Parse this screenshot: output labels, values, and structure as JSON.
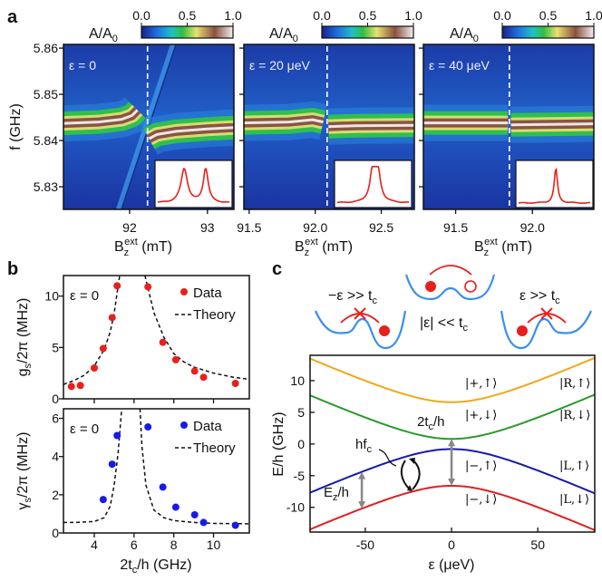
{
  "figure": {
    "panel_labels": [
      "a",
      "b",
      "c"
    ]
  },
  "chart_data": [
    {
      "type": "heatmap",
      "panel": "a",
      "ylabel": "f (GHz)",
      "yticks": [
        "5.86",
        "5.85",
        "5.84",
        "5.83"
      ],
      "ylim": [
        5.8251,
        5.8608
      ],
      "colorbar": {
        "label_main": "A/A",
        "label_sub": "0",
        "ticks": [
          "0.0",
          "0.5",
          "1.0"
        ],
        "range": [
          0,
          1
        ],
        "colors": [
          "#1a1f8c",
          "#1d6fe0",
          "#1fc0c8",
          "#2fbf3f",
          "#e8e070",
          "#8a5040",
          "#f4f0f0"
        ]
      },
      "xlabel": {
        "main": "B",
        "sub": "z",
        "sup": "ext",
        "unit": " (mT)"
      },
      "subplots": [
        {
          "annotation": "ε = 0",
          "xlim": [
            91.15,
            93.34
          ],
          "xticks": [
            {
              "v": 92,
              "l": "92"
            },
            {
              "v": 93,
              "l": "93"
            }
          ],
          "dashed_line_B": 92.23,
          "bands": [
            [
              [
                91.15,
                5.8437
              ],
              [
                91.6,
                5.844
              ],
              [
                91.9,
                5.8446
              ],
              [
                92.03,
                5.8454
              ],
              [
                92.1,
                5.8466
              ]
            ],
            [
              [
                92.25,
                5.8404
              ],
              [
                92.35,
                5.8413
              ],
              [
                92.6,
                5.842
              ],
              [
                93.0,
                5.8425
              ],
              [
                93.34,
                5.8428
              ]
            ]
          ],
          "diagonal": [
            [
              91.86,
              5.8251
            ],
            [
              92.56,
              5.8608
            ]
          ]
        },
        {
          "annotation": "ε = 20 μeV",
          "xlim": [
            91.46,
            92.75
          ],
          "xticks": [
            {
              "v": 91.5,
              "l": "91.5"
            },
            {
              "v": 92.0,
              "l": "92.0"
            },
            {
              "v": 92.5,
              "l": "92.5"
            }
          ],
          "dashed_line_B": 92.09,
          "bands": [
            [
              [
                91.46,
                5.8438
              ],
              [
                91.8,
                5.844
              ],
              [
                91.98,
                5.8445
              ],
              [
                92.06,
                5.844
              ]
            ],
            [
              [
                92.1,
                5.843
              ],
              [
                92.3,
                5.8432
              ],
              [
                92.75,
                5.8433
              ]
            ]
          ]
        },
        {
          "annotation": "ε = 40 μeV",
          "xlim": [
            91.29,
            92.4
          ],
          "xticks": [
            {
              "v": 91.5,
              "l": "91.5"
            },
            {
              "v": 92.0,
              "l": "92.0"
            }
          ],
          "dashed_line_B": 91.85,
          "bands": [
            [
              [
                91.29,
                5.8438
              ],
              [
                91.84,
                5.8438
              ]
            ],
            [
              [
                91.86,
                5.8434
              ],
              [
                92.4,
                5.8436
              ]
            ]
          ]
        }
      ]
    },
    {
      "type": "scatter",
      "panel": "b-top",
      "annotation": "ε = 0",
      "ylabel": {
        "main": "g",
        "sub": "s",
        "rest": "/2π (MHz)"
      },
      "xlim": [
        2.45,
        11.8
      ],
      "ylim": [
        0,
        12
      ],
      "yticks": [
        0,
        5,
        10
      ],
      "xticks": [
        4,
        6,
        8,
        10
      ],
      "legend": {
        "data": "Data",
        "theory": "Theory",
        "placement": "top-right"
      },
      "color": "#e8201c",
      "x": [
        2.85,
        3.3,
        4.0,
        4.45,
        4.9,
        5.15,
        6.7,
        7.45,
        8.1,
        9.05,
        9.5,
        11.1
      ],
      "y": [
        1.2,
        1.3,
        3.0,
        4.9,
        7.9,
        11.0,
        10.9,
        5.5,
        3.8,
        2.7,
        2.1,
        1.5
      ],
      "theory": [
        [
          [
            2.45,
            1.4
          ],
          [
            3.0,
            1.8
          ],
          [
            3.5,
            2.3
          ],
          [
            4.0,
            3.2
          ],
          [
            4.5,
            4.8
          ],
          [
            4.8,
            6.5
          ],
          [
            5.0,
            8.3
          ],
          [
            5.2,
            11.0
          ],
          [
            5.28,
            12
          ]
        ],
        [
          [
            6.55,
            12
          ],
          [
            6.8,
            10
          ],
          [
            7.0,
            8.4
          ],
          [
            7.5,
            6.0
          ],
          [
            8.0,
            4.4
          ],
          [
            8.5,
            3.6
          ],
          [
            9.0,
            3.1
          ],
          [
            10.0,
            2.5
          ],
          [
            11.0,
            2.1
          ],
          [
            11.8,
            1.9
          ]
        ]
      ]
    },
    {
      "type": "scatter",
      "panel": "b-bottom",
      "annotation": "ε = 0",
      "ylabel": {
        "main": "γ",
        "sub": "s",
        "rest": "/2π (MHz)"
      },
      "xlabel": {
        "main": "2t",
        "sub": "c",
        "rest": "/h (GHz)"
      },
      "xlim": [
        2.45,
        11.8
      ],
      "ylim": [
        0,
        6.5
      ],
      "yticks": [
        0,
        2,
        4,
        6
      ],
      "xticks": [
        4,
        6,
        8,
        10
      ],
      "legend": {
        "data": "Data",
        "theory": "Theory",
        "placement": "top-right"
      },
      "color": "#1a1ae6",
      "x": [
        4.45,
        4.9,
        5.15,
        6.7,
        7.45,
        8.1,
        9.05,
        9.5,
        11.1
      ],
      "y": [
        1.75,
        3.6,
        5.1,
        5.55,
        2.4,
        1.35,
        0.95,
        0.55,
        0.4
      ],
      "theory": [
        [
          [
            2.45,
            0.55
          ],
          [
            3.0,
            0.55
          ],
          [
            4.0,
            0.6
          ],
          [
            4.5,
            0.8
          ],
          [
            4.8,
            1.4
          ],
          [
            5.0,
            2.5
          ],
          [
            5.2,
            4.2
          ],
          [
            5.38,
            6.5
          ]
        ],
        [
          [
            6.3,
            6.5
          ],
          [
            6.4,
            4.5
          ],
          [
            6.6,
            2.5
          ],
          [
            7.0,
            1.2
          ],
          [
            7.5,
            0.8
          ],
          [
            8.0,
            0.65
          ],
          [
            9.0,
            0.55
          ],
          [
            10.0,
            0.5
          ],
          [
            11.8,
            0.48
          ]
        ]
      ]
    },
    {
      "type": "line",
      "panel": "c",
      "xlabel": "ε (μeV)",
      "ylabel": "E/h (GHz)",
      "xlim": [
        -82,
        83
      ],
      "ylim": [
        -13.9,
        14
      ],
      "xticks": [
        -50,
        0,
        50
      ],
      "yticks": [
        10,
        5,
        0,
        -5,
        -10
      ],
      "model": {
        "tc_GHz": 3.7,
        "Ez_GHz": 5.8,
        "GHz_per_ueV": 0.2418
      },
      "series": [
        {
          "color": "#f0a818",
          "label_mid": "|+,↑⟩",
          "label_right": "|R,↑⟩",
          "orbital": 1,
          "spin": 1
        },
        {
          "color": "#2a9a2a",
          "label_mid": "|+,↓⟩",
          "label_right": "|R,↓⟩",
          "orbital": 1,
          "spin": -1
        },
        {
          "color": "#1a1aaa",
          "label_mid": "|−,↑⟩",
          "label_right": "|L,↑⟩",
          "orbital": -1,
          "spin": 1
        },
        {
          "color": "#e02020",
          "label_mid": "|−,↓⟩",
          "label_right": "|L,↓⟩",
          "orbital": -1,
          "spin": -1
        }
      ],
      "annotations": {
        "tc": {
          "main": "2t",
          "sub": "c",
          "rest": "/h"
        },
        "hf": {
          "main": "hf",
          "sub": "c"
        },
        "ez": {
          "main": "E",
          "sub": "z",
          "rest": "/h"
        },
        "ez_arrow_eps": -52
      },
      "cartoons": {
        "left": {
          "main": "−ε >> t",
          "sub": "c"
        },
        "middle": {
          "main": "|ε| << t",
          "sub": "c"
        },
        "right": {
          "main": "ε >> t",
          "sub": "c"
        }
      }
    }
  ]
}
